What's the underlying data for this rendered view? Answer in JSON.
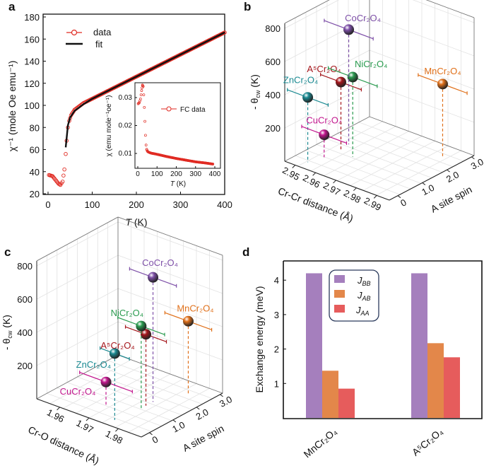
{
  "panels": {
    "a": "a",
    "b": "b",
    "c": "c",
    "d": "d"
  },
  "chart_data": [
    {
      "panel": "a",
      "type": "line",
      "xlabel": {
        "italic": "T",
        "rest": " (K)"
      },
      "ylabel": "χ⁻¹ (mole Oe emu⁻¹)",
      "xlim": [
        0,
        400
      ],
      "ylim": [
        20,
        180
      ],
      "xticks": [
        0,
        100,
        200,
        300,
        400
      ],
      "yticks": [
        20,
        40,
        60,
        80,
        100,
        120,
        140,
        160,
        180
      ],
      "legend": {
        "position": "top-left",
        "entries": [
          "data",
          "fit"
        ]
      },
      "colors": {
        "data": "#e02a22",
        "fit": "#111111"
      },
      "series": [
        {
          "name": "data",
          "x": [
            2,
            10,
            18,
            24,
            28,
            33,
            37,
            40,
            42,
            45,
            48,
            52,
            60,
            70,
            80,
            100,
            150,
            200,
            250,
            300,
            350,
            400
          ],
          "y": [
            37,
            36,
            32,
            29,
            28,
            31,
            42,
            56,
            68,
            80,
            86,
            91,
            96,
            99,
            102,
            106,
            116,
            126,
            136,
            146,
            156,
            166
          ]
        },
        {
          "name": "fit",
          "x": [
            40,
            45,
            50,
            60,
            80,
            100,
            400
          ],
          "y": [
            62,
            82,
            89,
            95,
            101,
            106,
            166
          ]
        }
      ],
      "inset": {
        "type": "line",
        "xlabel": {
          "italic": "T",
          "rest": " (K)"
        },
        "ylabel": "χ (emu mole⁻¹oe⁻¹)",
        "xlim": [
          0,
          400
        ],
        "ylim": [
          0.0047,
          0.0355
        ],
        "xticks": [
          0,
          100,
          200,
          300,
          400
        ],
        "yticks": [
          0.01,
          0.02,
          0.03
        ],
        "ytick_labels": [
          "0.01",
          "0.02",
          "0.03"
        ],
        "legend": {
          "position": "top-right",
          "entries": [
            "FC data"
          ]
        },
        "series": [
          {
            "name": "FC data",
            "x": [
              2,
              8,
              14,
              20,
              24,
              28,
              31,
              34,
              37,
              40,
              43,
              46,
              50,
              55,
              70,
              100,
              150,
              200,
              250,
              300,
              350,
              390
            ],
            "y": [
              0.0278,
              0.0282,
              0.0295,
              0.0325,
              0.0345,
              0.034,
              0.031,
              0.0265,
              0.0215,
              0.0165,
              0.013,
              0.0115,
              0.0108,
              0.0105,
              0.0101,
              0.0097,
              0.0089,
              0.0082,
              0.0076,
              0.007,
              0.0066,
              0.0062
            ]
          }
        ]
      }
    },
    {
      "panel": "b",
      "type": "scatter",
      "xlabel": "Cr-Cr distance (Å)",
      "ylabel": "A site spin",
      "zlabel": {
        "prefix": "- θ",
        "sub": "cw",
        "suffix": " (K)"
      },
      "xticks": [
        2.95,
        2.96,
        2.97,
        2.98,
        2.99
      ],
      "xtick_labels": [
        "2.95",
        "2.96",
        "2.97",
        "2.98",
        "2.99"
      ],
      "yticks": [
        0,
        1,
        2,
        3
      ],
      "ytick_labels": [
        "0",
        "1.0",
        "2.0",
        "3.0"
      ],
      "zticks": [
        200,
        400,
        600,
        800
      ],
      "zlim": [
        0,
        830
      ],
      "points": [
        {
          "name": "ZnCr₂O₄",
          "x": 2.952,
          "y": 0,
          "z": 390,
          "xerr": 0.01,
          "color": "#1b8a92"
        },
        {
          "name": "CuCr₂O₄",
          "x": 2.954,
          "y": 0.5,
          "z": 135,
          "xerr": 0.011,
          "color": "#c2178e"
        },
        {
          "name": "A⁵Cr₂O₄",
          "x": 2.955,
          "y": 1.1,
          "z": 410,
          "xerr": 0.01,
          "color": "#a5161c"
        },
        {
          "name": "NiCr₂O₄",
          "x": 2.962,
          "y": 1.0,
          "z": 480,
          "xerr": 0.012,
          "color": "#2a9b4f"
        },
        {
          "name": "CoCr₂O₄",
          "x": 2.954,
          "y": 1.5,
          "z": 690,
          "xerr": 0.012,
          "color": "#7e50a8"
        },
        {
          "name": "MnCr₂O₄",
          "x": 2.988,
          "y": 2.5,
          "z": 440,
          "xerr": 0.012,
          "color": "#e0701a"
        }
      ]
    },
    {
      "panel": "c",
      "type": "scatter",
      "xlabel": "Cr-O distance (Å)",
      "ylabel": "A site spin",
      "zlabel": {
        "prefix": "- θ",
        "sub": "cw",
        "suffix": " (K)"
      },
      "xticks": [
        1.96,
        1.97,
        1.98
      ],
      "xtick_labels": [
        "1.96",
        "1.97",
        "1.98"
      ],
      "yticks": [
        0,
        1,
        2,
        3
      ],
      "ytick_labels": [
        "0",
        "1.0",
        "2.0",
        "3.0"
      ],
      "zticks": [
        200,
        400,
        600,
        800
      ],
      "zlim": [
        0,
        830
      ],
      "points": [
        {
          "name": "ZnCr₂O₄",
          "x": 1.976,
          "y": 0,
          "z": 400,
          "xerr": 0.005,
          "color": "#1b8a92"
        },
        {
          "name": "CuCr₂O₄",
          "x": 1.969,
          "y": 0.5,
          "z": 145,
          "xerr": 0.009,
          "color": "#c2178e"
        },
        {
          "name": "A⁵Cr₂O₄",
          "x": 1.977,
          "y": 1.2,
          "z": 430,
          "xerr": 0.007,
          "color": "#a5161c"
        },
        {
          "name": "NiCr₂O₄",
          "x": 1.977,
          "y": 1.0,
          "z": 495,
          "xerr": 0.008,
          "color": "#2a9b4f"
        },
        {
          "name": "CoCr₂O₄",
          "x": 1.977,
          "y": 1.5,
          "z": 750,
          "xerr": 0.008,
          "color": "#7e50a8"
        },
        {
          "name": "MnCr₂O₄",
          "x": 1.981,
          "y": 2.5,
          "z": 435,
          "xerr": 0.008,
          "color": "#e0701a"
        }
      ]
    },
    {
      "panel": "d",
      "type": "bar",
      "ylabel": "Exchange energy (meV)",
      "categories": [
        "MnCr₂O₄",
        "A⁵Cr₂O₄"
      ],
      "ylim": [
        0,
        4.6
      ],
      "yticks": [
        1,
        2,
        3,
        4
      ],
      "legend": {
        "position": "top-center"
      },
      "series": [
        {
          "name": {
            "main": "J",
            "sub": "BB"
          },
          "values": [
            4.2,
            4.2
          ],
          "color": "#a57fbd"
        },
        {
          "name": {
            "main": "J",
            "sub": "AB"
          },
          "values": [
            1.37,
            2.17
          ],
          "color": "#e3874a"
        },
        {
          "name": {
            "main": "J",
            "sub": "AA"
          },
          "values": [
            0.85,
            1.76
          ],
          "color": "#e65c5c"
        }
      ]
    }
  ]
}
